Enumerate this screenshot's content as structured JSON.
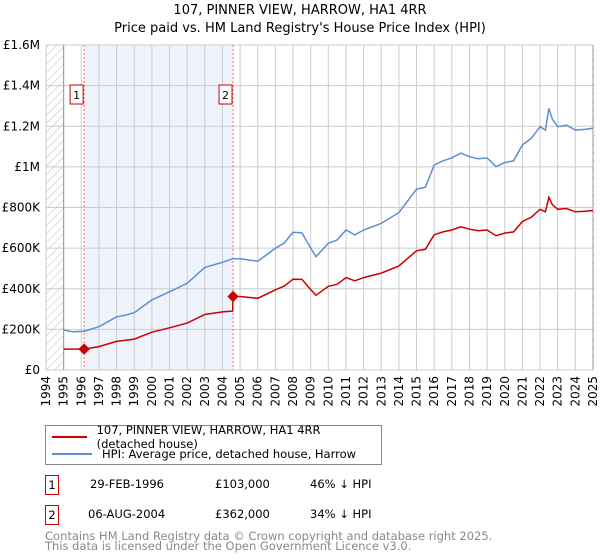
{
  "title": "107, PINNER VIEW, HARROW, HA1 4RR",
  "subtitle": "Price paid vs. HM Land Registry's House Price Index (HPI)",
  "colors": {
    "price": "#cc0000",
    "hpi": "#5b8fd4",
    "shade": "#eef3fc",
    "grid": "#cccccc"
  },
  "chart_data": {
    "type": "line",
    "title": "107, PINNER VIEW, HARROW, HA1 4RR — Price paid vs. HM Land Registry's House Price Index (HPI)",
    "xlim": [
      1994,
      2025
    ],
    "ylim": [
      0,
      1600000
    ],
    "grid": true,
    "x_ticks": [
      "1994",
      "1995",
      "1996",
      "1997",
      "1998",
      "1999",
      "2000",
      "2001",
      "2002",
      "2003",
      "2004",
      "2005",
      "2006",
      "2007",
      "2008",
      "2009",
      "2010",
      "2011",
      "2012",
      "2013",
      "2014",
      "2015",
      "2016",
      "2017",
      "2018",
      "2019",
      "2020",
      "2021",
      "2022",
      "2023",
      "2024",
      "2025"
    ],
    "y_ticks": [
      {
        "v": 0,
        "label": "£0"
      },
      {
        "v": 200000,
        "label": "£200K"
      },
      {
        "v": 400000,
        "label": "£400K"
      },
      {
        "v": 600000,
        "label": "£600K"
      },
      {
        "v": 800000,
        "label": "£800K"
      },
      {
        "v": 1000000,
        "label": "£1M"
      },
      {
        "v": 1200000,
        "label": "£1.2M"
      },
      {
        "v": 1400000,
        "label": "£1.4M"
      },
      {
        "v": 1600000,
        "label": "£1.6M"
      }
    ],
    "series": [
      {
        "name": "107, PINNER VIEW, HARROW, HA1 4RR (detached house)",
        "color": "#cc0000",
        "x": [
          1995,
          1995.5,
          1996.16,
          1997,
          1998,
          1998.5,
          1999,
          2000,
          2001,
          2002,
          2003,
          2004,
          2004.58,
          2004.6,
          2005,
          2006,
          2007,
          2007.5,
          2008,
          2008.5,
          2009,
          2009.3,
          2010,
          2010.5,
          2011,
          2011.5,
          2012,
          2013,
          2014,
          2015,
          2015.5,
          2016,
          2016.5,
          2017,
          2017.5,
          2018,
          2018.5,
          2019,
          2019.5,
          2020,
          2020.5,
          2021,
          2021.5,
          2022,
          2022.3,
          2022.5,
          2022.7,
          2023,
          2023.5,
          2024,
          2024.6,
          2025
        ],
        "values": [
          103000,
          103000,
          103000,
          115000,
          141000,
          146000,
          152000,
          186000,
          208000,
          231000,
          273000,
          286000,
          290000,
          362000,
          362000,
          353000,
          395000,
          413000,
          447000,
          446000,
          396000,
          368000,
          412000,
          422000,
          455000,
          439000,
          455000,
          477000,
          512000,
          587000,
          594000,
          666000,
          680000,
          689000,
          705000,
          693000,
          686000,
          689000,
          661000,
          674000,
          680000,
          731000,
          752000,
          791000,
          779000,
          850000,
          814000,
          791000,
          795000,
          779000,
          782000,
          785000
        ]
      },
      {
        "name": "HPI: Average price, detached house, Harrow",
        "color": "#5b8fd4",
        "x": [
          1995,
          1995.5,
          1996.16,
          1997,
          1998,
          1998.5,
          1999,
          2000,
          2001,
          2002,
          2003,
          2004,
          2004.58,
          2005,
          2006,
          2007,
          2007.5,
          2008,
          2008.5,
          2009,
          2009.3,
          2010,
          2010.5,
          2011,
          2011.5,
          2012,
          2013,
          2014,
          2015,
          2015.5,
          2016,
          2016.5,
          2017,
          2017.5,
          2018,
          2018.5,
          2019,
          2019.5,
          2020,
          2020.5,
          2021,
          2021.5,
          2022,
          2022.3,
          2022.5,
          2022.7,
          2023,
          2023.5,
          2024,
          2024.6,
          2025
        ],
        "values": [
          197000,
          188000,
          190000,
          213000,
          262000,
          270000,
          282000,
          345000,
          385000,
          427000,
          505000,
          530000,
          548000,
          548000,
          535000,
          599000,
          625000,
          678000,
          675000,
          600000,
          558000,
          624000,
          640000,
          689000,
          665000,
          689000,
          722000,
          775000,
          890000,
          900000,
          1009000,
          1030000,
          1044000,
          1068000,
          1050000,
          1040000,
          1044000,
          1001000,
          1021000,
          1030000,
          1108000,
          1140000,
          1198000,
          1181000,
          1288000,
          1234000,
          1198000,
          1205000,
          1181000,
          1185000,
          1190000
        ]
      }
    ],
    "annotations": [
      {
        "label": "1",
        "x": 1996.16,
        "value": 103000
      },
      {
        "label": "2",
        "x": 2004.6,
        "value": 362000
      }
    ],
    "legend_placement": "below"
  },
  "legend": {
    "price_label": "107, PINNER VIEW, HARROW, HA1 4RR (detached house)",
    "hpi_label": "HPI: Average price, detached house, Harrow"
  },
  "transactions": [
    {
      "num": "1",
      "date": "29-FEB-1996",
      "price": "£103,000",
      "delta": "46% ↓ HPI"
    },
    {
      "num": "2",
      "date": "06-AUG-2004",
      "price": "£362,000",
      "delta": "34% ↓ HPI"
    }
  ],
  "footer": {
    "line1": "Contains HM Land Registry data © Crown copyright and database right 2025.",
    "line2": "This data is licensed under the Open Government Licence v3.0."
  }
}
